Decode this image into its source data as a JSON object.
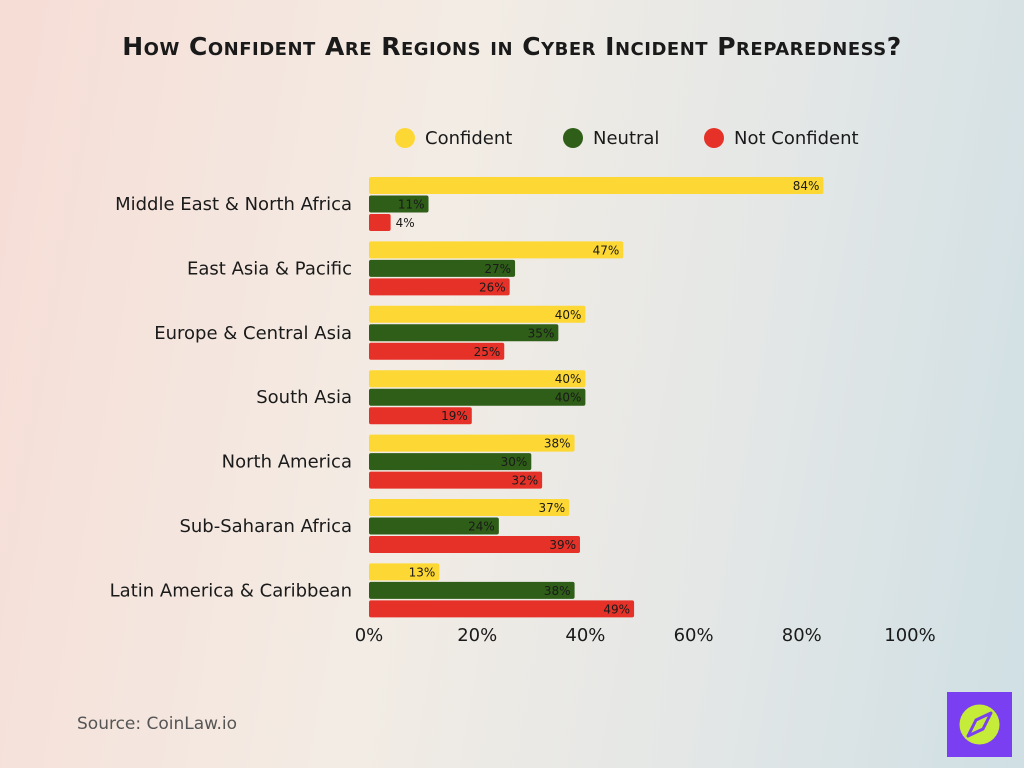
{
  "chart_data": {
    "type": "bar",
    "orientation": "horizontal",
    "title": "How Confident Are Regions in Cyber Incident Preparedness?",
    "categories": [
      "Middle East & North Africa",
      "East Asia & Pacific",
      "Europe & Central Asia",
      "South Asia",
      "North America",
      "Sub-Saharan Africa",
      "Latin America & Caribbean"
    ],
    "series": [
      {
        "name": "Confident",
        "color": "#fdd835",
        "values": [
          84,
          47,
          40,
          40,
          38,
          37,
          13
        ],
        "value_labels": [
          "84%",
          "47%",
          "40%",
          "40%",
          "38%",
          "37%",
          "13%"
        ]
      },
      {
        "name": "Neutral",
        "color": "#2e5e17",
        "values": [
          11,
          27,
          35,
          40,
          30,
          24,
          38
        ],
        "value_labels": [
          "11%",
          "27%",
          "35%",
          "40%",
          "30%",
          "24%",
          "38%"
        ]
      },
      {
        "name": "Not Confident",
        "color": "#e53128",
        "values": [
          4,
          26,
          25,
          19,
          32,
          39,
          49
        ],
        "value_labels": [
          "4%",
          "26%",
          "25%",
          "19%",
          "32%",
          "39%",
          "49%"
        ]
      }
    ],
    "xlim": [
      0,
      100
    ],
    "xticks": [
      {
        "value": 0,
        "label": "0%"
      },
      {
        "value": 20,
        "label": "20%"
      },
      {
        "value": 40,
        "label": "40%"
      },
      {
        "value": 60,
        "label": "60%"
      },
      {
        "value": 80,
        "label": "80%"
      },
      {
        "value": 100,
        "label": "100%"
      }
    ],
    "source": "Source: CoinLaw.io"
  }
}
